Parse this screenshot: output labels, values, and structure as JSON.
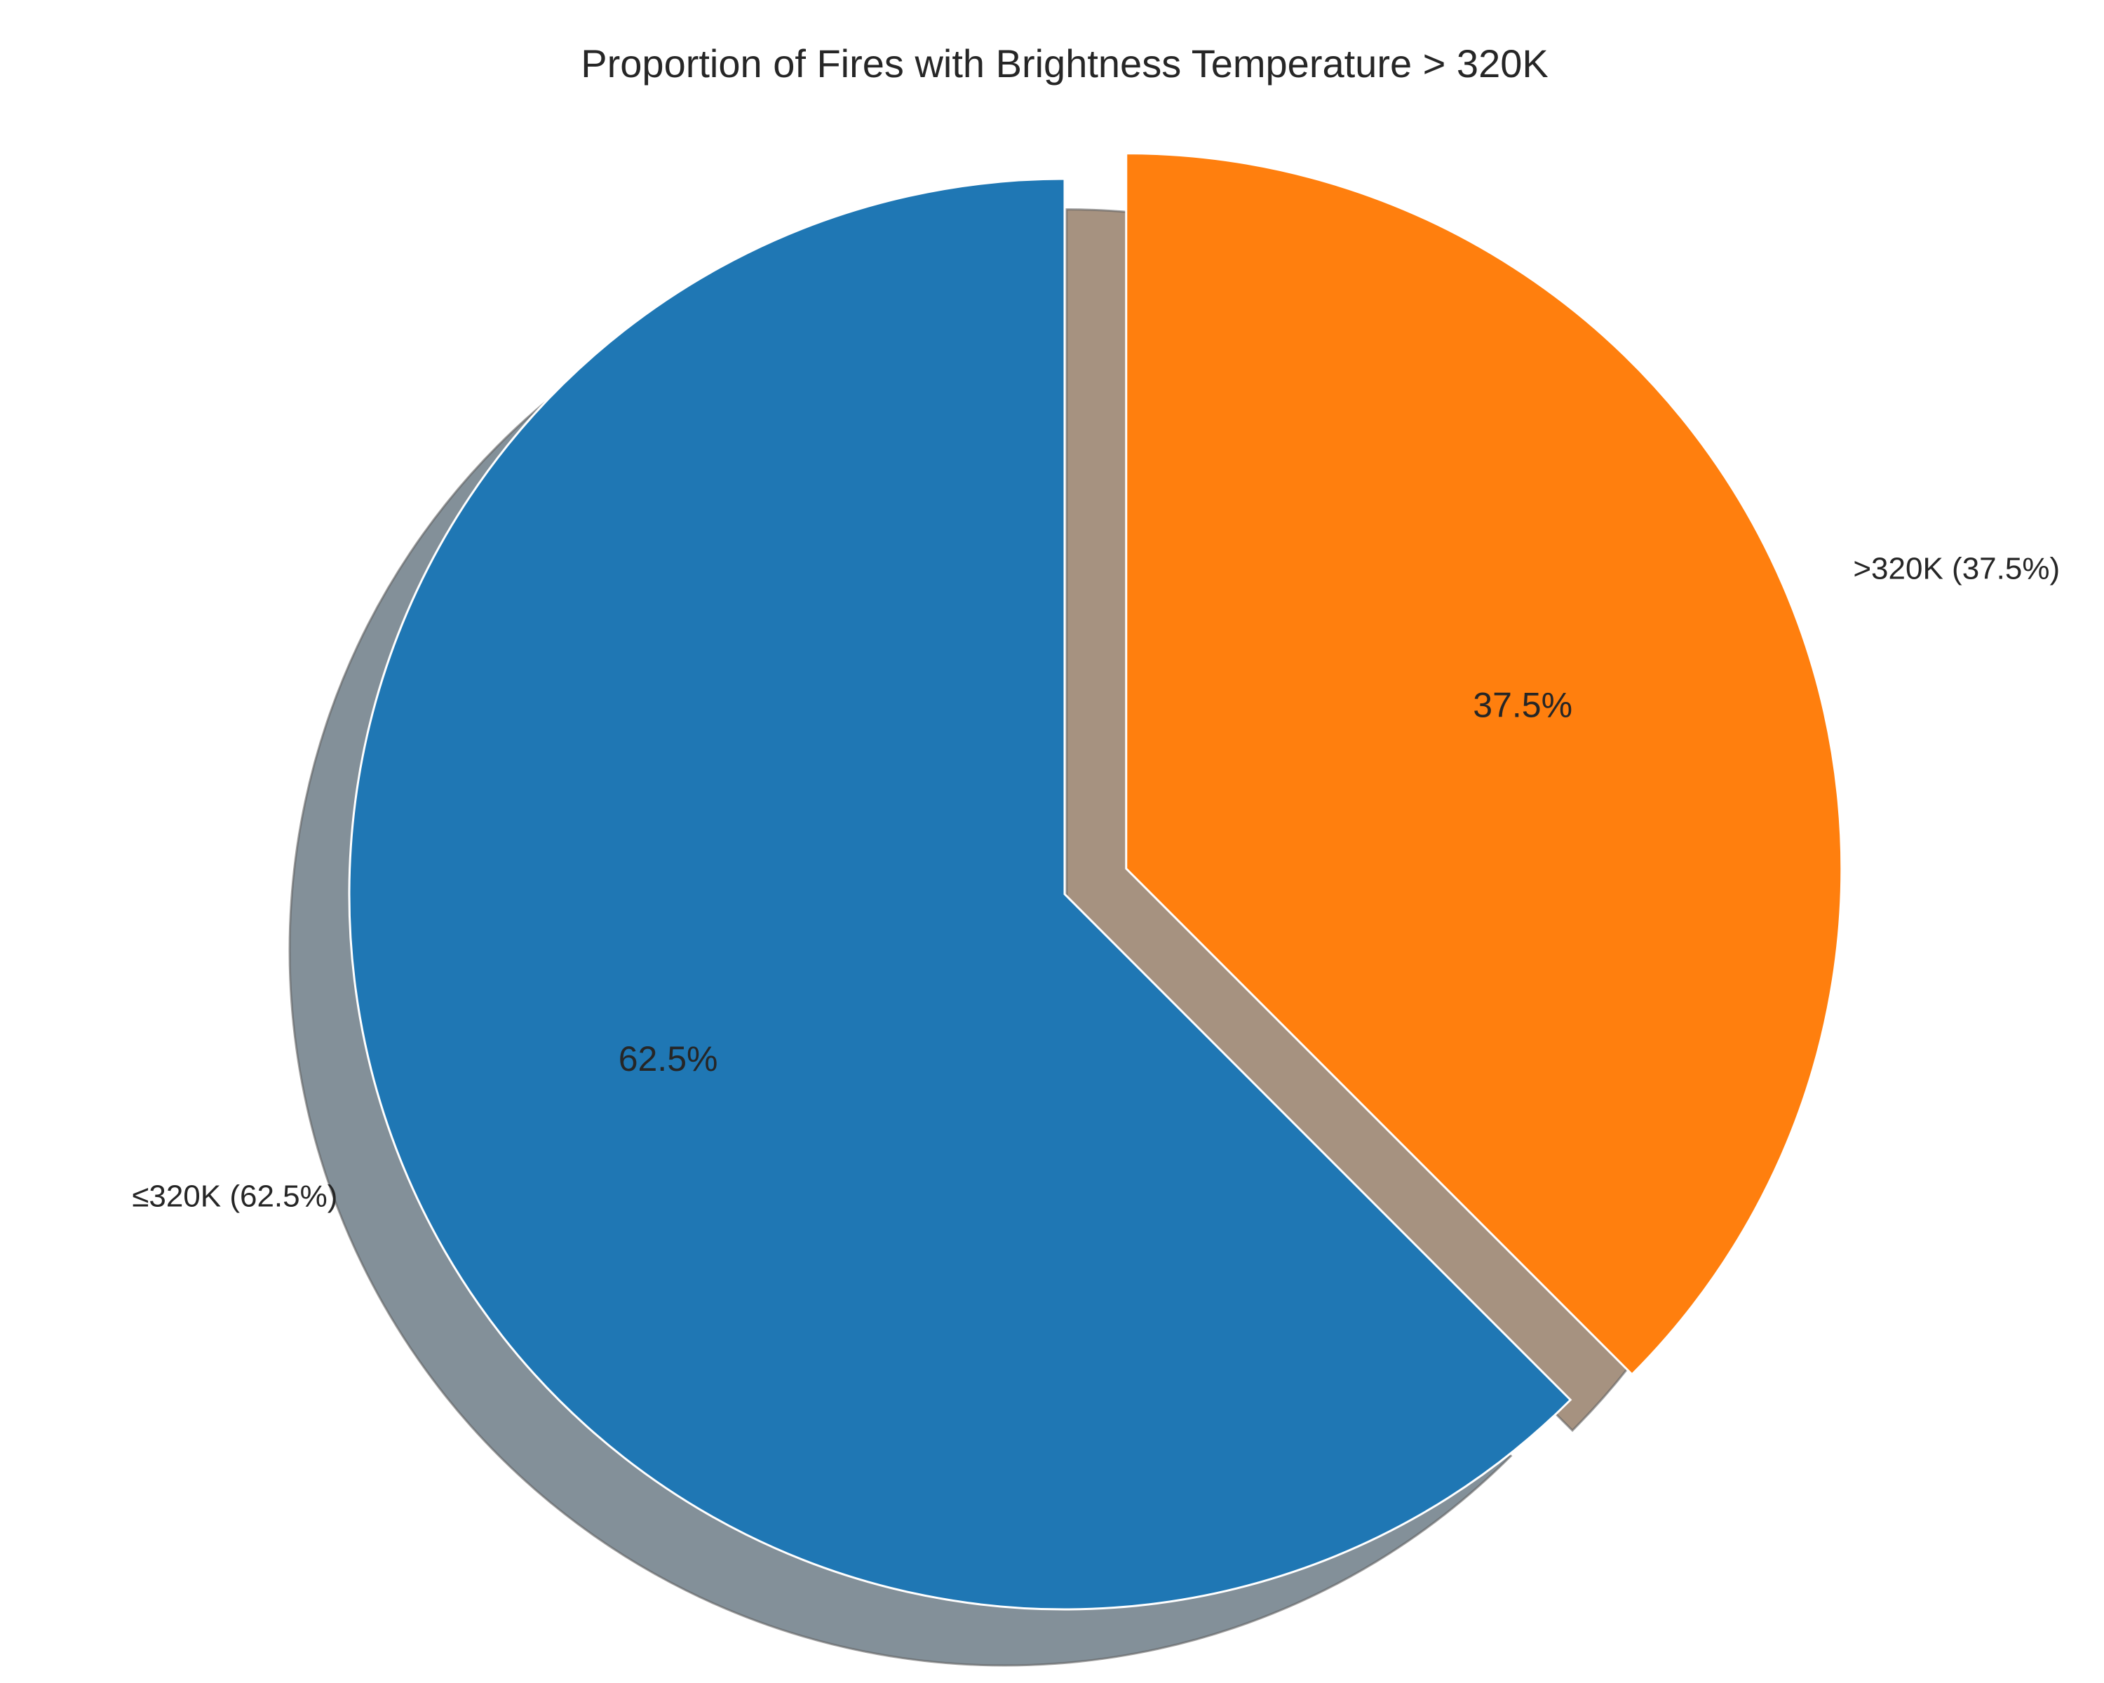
{
  "chart_data": {
    "type": "pie",
    "title": "Proportion of Fires with Brightness Temperature > 320K",
    "start_angle_deg": 90,
    "direction": "clockwise",
    "shadow": true,
    "slices": [
      {
        "label": ">320K (37.5%)",
        "pct_label": "37.5%",
        "value": 37.5,
        "color": "#ff7f0e",
        "shadow_color": "#a69280",
        "exploded": true
      },
      {
        "label": "≤320K (62.5%)",
        "pct_label": "62.5%",
        "value": 62.5,
        "color": "#1f77b4",
        "shadow_color": "#839099",
        "exploded": false
      }
    ]
  }
}
